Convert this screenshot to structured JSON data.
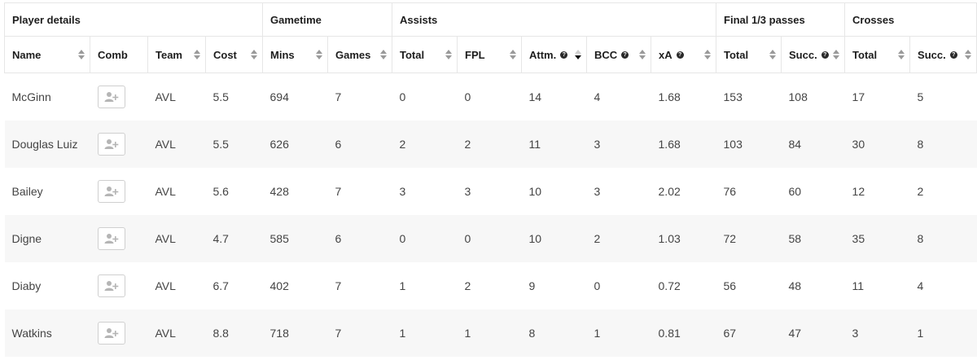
{
  "groups": [
    {
      "label": "Player details",
      "span": 4
    },
    {
      "label": "Gametime",
      "span": 2
    },
    {
      "label": "Assists",
      "span": 5
    },
    {
      "label": "Final 1/3 passes",
      "span": 2
    },
    {
      "label": "Crosses",
      "span": 2
    }
  ],
  "columns": [
    {
      "key": "name",
      "label": "Name",
      "sortable": true,
      "help": false
    },
    {
      "key": "comb",
      "label": "Comb",
      "sortable": false,
      "help": false
    },
    {
      "key": "team",
      "label": "Team",
      "sortable": true,
      "help": false
    },
    {
      "key": "cost",
      "label": "Cost",
      "sortable": true,
      "help": false
    },
    {
      "key": "mins",
      "label": "Mins",
      "sortable": true,
      "help": false
    },
    {
      "key": "games",
      "label": "Games",
      "sortable": true,
      "help": false
    },
    {
      "key": "ast_total",
      "label": "Total",
      "sortable": true,
      "help": false
    },
    {
      "key": "fpl",
      "label": "FPL",
      "sortable": true,
      "help": false
    },
    {
      "key": "attm",
      "label": "Attm.",
      "sortable": true,
      "help": true,
      "active_sort": "desc"
    },
    {
      "key": "bcc",
      "label": "BCC",
      "sortable": true,
      "help": true
    },
    {
      "key": "xa",
      "label": "xA",
      "sortable": true,
      "help": true
    },
    {
      "key": "f3_total",
      "label": "Total",
      "sortable": true,
      "help": false
    },
    {
      "key": "f3_succ",
      "label": "Succ.",
      "sortable": true,
      "help": true
    },
    {
      "key": "cr_total",
      "label": "Total",
      "sortable": true,
      "help": false
    },
    {
      "key": "cr_succ",
      "label": "Succ.",
      "sortable": true,
      "help": true
    }
  ],
  "rows": [
    {
      "name": "McGinn",
      "team": "AVL",
      "cost": "5.5",
      "mins": "694",
      "games": "7",
      "ast_total": "0",
      "fpl": "0",
      "attm": "14",
      "bcc": "4",
      "xa": "1.68",
      "f3_total": "153",
      "f3_succ": "108",
      "cr_total": "17",
      "cr_succ": "5"
    },
    {
      "name": "Douglas Luiz",
      "team": "AVL",
      "cost": "5.5",
      "mins": "626",
      "games": "6",
      "ast_total": "2",
      "fpl": "2",
      "attm": "11",
      "bcc": "3",
      "xa": "1.68",
      "f3_total": "103",
      "f3_succ": "84",
      "cr_total": "30",
      "cr_succ": "8"
    },
    {
      "name": "Bailey",
      "team": "AVL",
      "cost": "5.6",
      "mins": "428",
      "games": "7",
      "ast_total": "3",
      "fpl": "3",
      "attm": "10",
      "bcc": "3",
      "xa": "2.02",
      "f3_total": "76",
      "f3_succ": "60",
      "cr_total": "12",
      "cr_succ": "2"
    },
    {
      "name": "Digne",
      "team": "AVL",
      "cost": "4.7",
      "mins": "585",
      "games": "6",
      "ast_total": "0",
      "fpl": "0",
      "attm": "10",
      "bcc": "2",
      "xa": "1.03",
      "f3_total": "72",
      "f3_succ": "58",
      "cr_total": "35",
      "cr_succ": "8"
    },
    {
      "name": "Diaby",
      "team": "AVL",
      "cost": "6.7",
      "mins": "402",
      "games": "7",
      "ast_total": "1",
      "fpl": "2",
      "attm": "9",
      "bcc": "0",
      "xa": "0.72",
      "f3_total": "56",
      "f3_succ": "48",
      "cr_total": "11",
      "cr_succ": "4"
    },
    {
      "name": "Watkins",
      "team": "AVL",
      "cost": "8.8",
      "mins": "718",
      "games": "7",
      "ast_total": "1",
      "fpl": "1",
      "attm": "8",
      "bcc": "1",
      "xa": "0.81",
      "f3_total": "67",
      "f3_succ": "47",
      "cr_total": "3",
      "cr_succ": "1"
    }
  ],
  "icons": {
    "comb": "add-user-icon",
    "help": "question-icon",
    "sort": "sort-arrows-icon"
  },
  "colors": {
    "row_alt": "#f7f7f7",
    "border": "#e6e6e6",
    "text": "#444444",
    "header_text": "#1d1d1d"
  }
}
